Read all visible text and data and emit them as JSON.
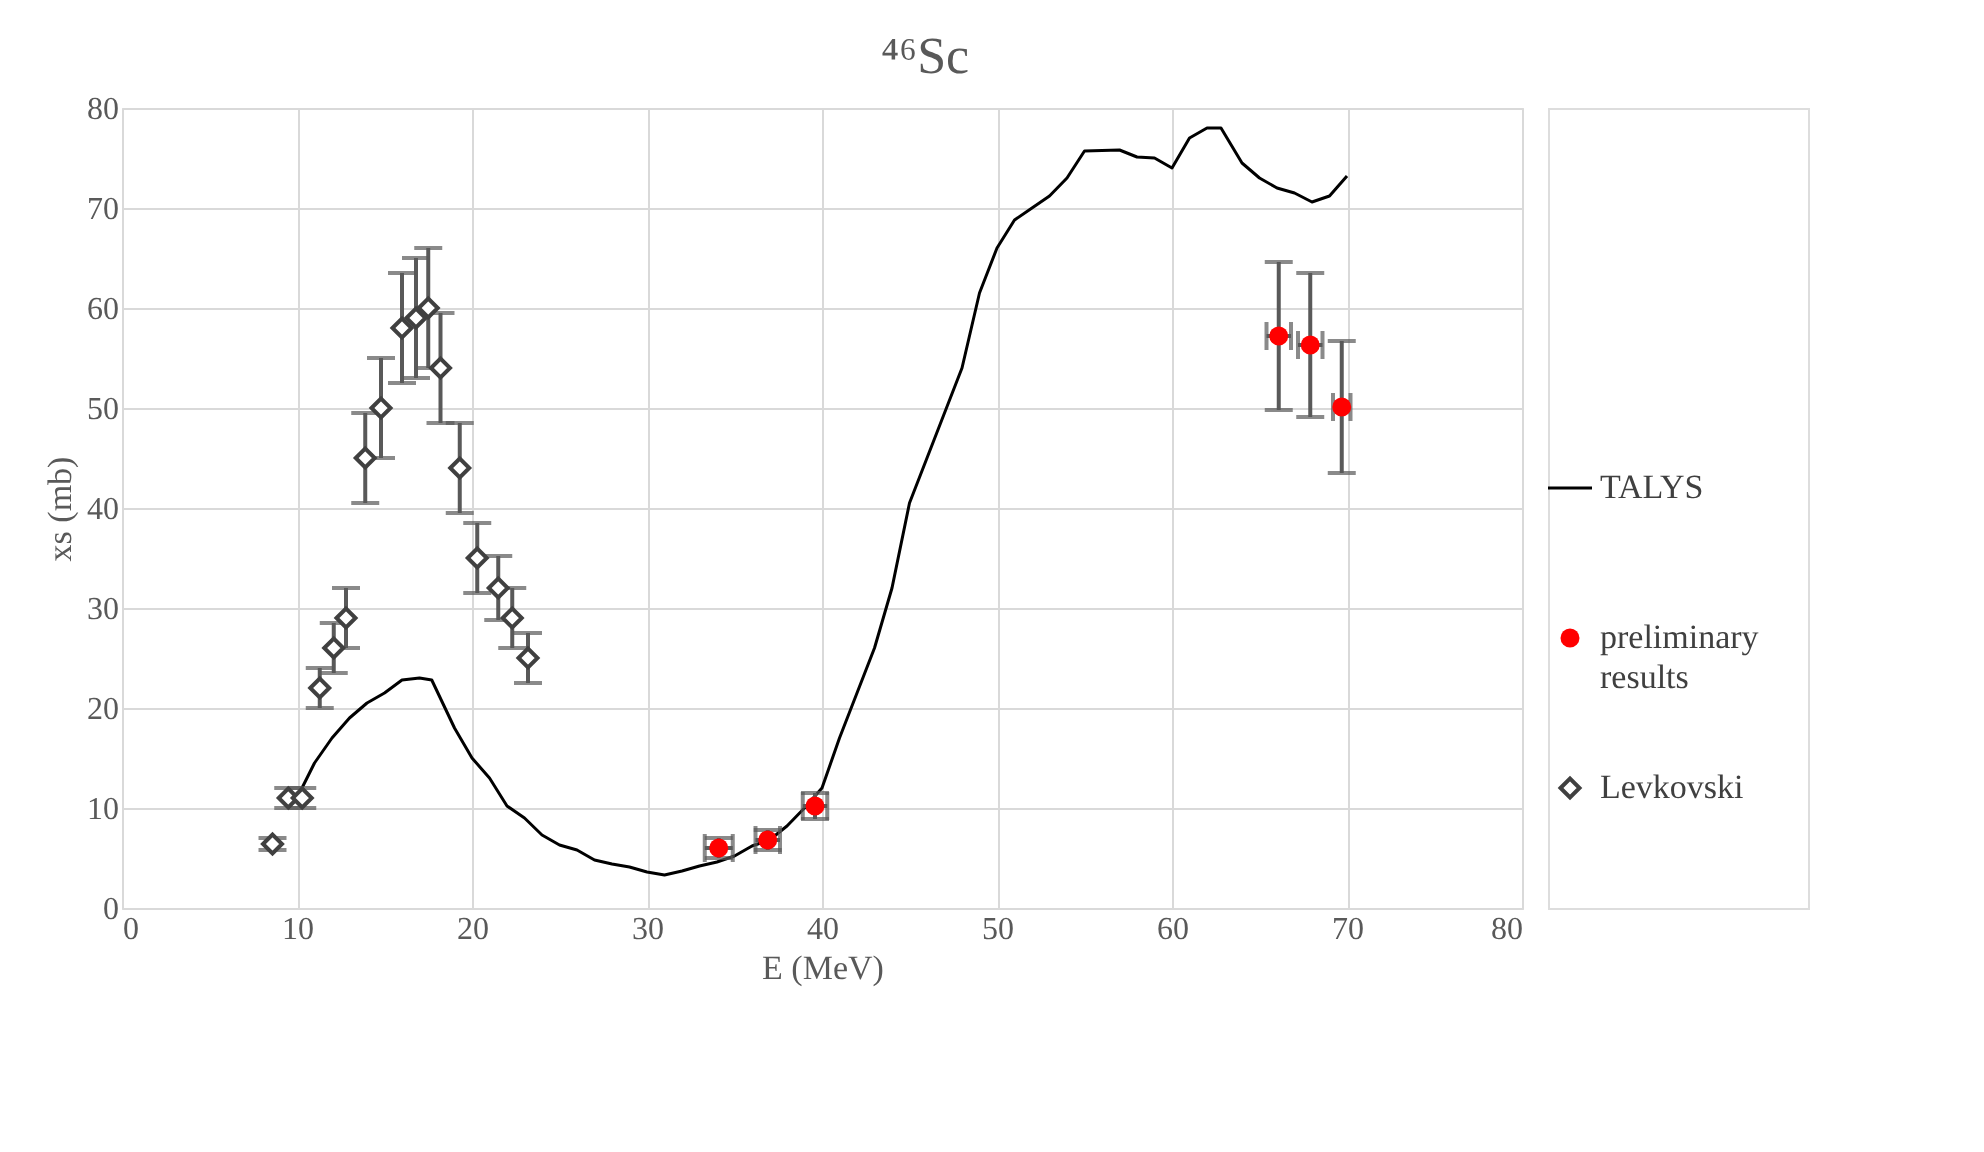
{
  "chart_data": {
    "type": "line",
    "title": "⁴⁶Sc",
    "xlabel": "E (MeV)",
    "ylabel": "xs (mb)",
    "xlim": [
      0,
      80
    ],
    "xticks": [
      0,
      10,
      20,
      30,
      40,
      50,
      60,
      70,
      80
    ],
    "ylim": [
      0,
      80
    ],
    "yticks": [
      0,
      10,
      20,
      30,
      40,
      50,
      60,
      70,
      80
    ],
    "grid": true,
    "legend": "right",
    "series": [
      {
        "name": "TALYS",
        "color": "#000000",
        "marker": "none",
        "line_style": "solid",
        "x": [
          10,
          11,
          12,
          13,
          14,
          15,
          16,
          17,
          17.7,
          19,
          20,
          21,
          22,
          23,
          24,
          25,
          26,
          27,
          28,
          29,
          30,
          31,
          32,
          33,
          34,
          35,
          36,
          37,
          38,
          39,
          40,
          41,
          42,
          43,
          44,
          45,
          46,
          47,
          48,
          49,
          50,
          51,
          52,
          53,
          54,
          55,
          57,
          58,
          59,
          60,
          61,
          62,
          62.8,
          64,
          65,
          66,
          67,
          68,
          69,
          70
        ],
        "values": [
          11,
          14.5,
          17,
          19,
          20.5,
          21.5,
          22.8,
          23,
          22.8,
          18,
          15,
          13,
          10.2,
          9,
          7.3,
          6.3,
          5.8,
          4.8,
          4.4,
          4.1,
          3.6,
          3.3,
          3.7,
          4.2,
          4.6,
          5.2,
          6.2,
          6.8,
          8.2,
          10,
          12,
          17,
          21.5,
          26,
          32,
          40.5,
          45,
          49.5,
          54,
          61.5,
          66,
          68.8,
          70,
          71.2,
          73,
          75.7,
          75.8,
          75.1,
          75,
          74,
          77,
          78,
          78,
          74.5,
          73,
          72,
          71.5,
          70.6,
          71.2,
          73.2
        ]
      },
      {
        "name": "preliminary results",
        "type": "scatter",
        "color": "#ff0000",
        "marker": "circle",
        "x": [
          34.1,
          36.9,
          39.6,
          66.1,
          67.9,
          69.7
        ],
        "values": [
          6,
          6.8,
          10.2,
          57.2,
          56.3,
          50.1
        ],
        "errors": [
          1,
          1,
          1.3,
          7.4,
          7.2,
          6.6
        ],
        "xerrors": [
          0.8,
          0.7,
          0.7,
          0.7,
          0.7,
          0.5
        ]
      },
      {
        "name": "Levkovski",
        "type": "scatter",
        "color": "#404040",
        "marker": "diamond",
        "x": [
          8.6,
          9.5,
          10.3,
          11.3,
          12.1,
          12.8,
          13.9,
          14.8,
          16,
          16.8,
          17.5,
          18.2,
          19.3,
          20.3,
          21.5,
          22.3,
          23.2
        ],
        "values": [
          6.4,
          11,
          11,
          22,
          26,
          29,
          45,
          50,
          58,
          59,
          60,
          54,
          44,
          35,
          32,
          29,
          25
        ],
        "errors": [
          0.6,
          1,
          1,
          2,
          2.5,
          3,
          4.5,
          5,
          5.5,
          6,
          6,
          5.5,
          4.5,
          3.5,
          3.2,
          3,
          2.5
        ]
      }
    ]
  }
}
